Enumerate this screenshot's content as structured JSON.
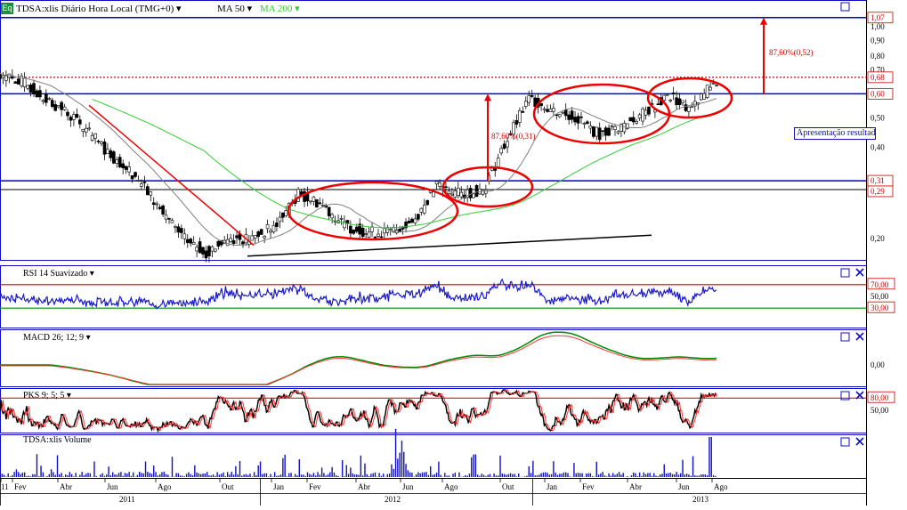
{
  "app": {
    "badge": "Eq"
  },
  "main_header": {
    "symbol_label": "TDSA:xlis Diário Hora Local (TMG+0)",
    "ma50_label": "MA 50",
    "ma200_label": "MA 200"
  },
  "panels": {
    "rsi": {
      "label": "RSI 14 Suavizado"
    },
    "macd": {
      "label": "MACD 26; 12; 9"
    },
    "pks": {
      "label": "PKS 9; 5; 5"
    },
    "volume": {
      "label": "TDSA:xlis Volume"
    }
  },
  "annotations": {
    "arrow_left_label": "87,60%(0,31)",
    "arrow_right_label": "87,60%(0,52)",
    "note_box": "Apresentação resultados"
  },
  "colors": {
    "frame": "#1010c0",
    "ma50": "#808080",
    "ma200": "#33cc33",
    "rsi": "#1a1acc",
    "macd": "#008800",
    "signal": "#ff3333",
    "stoch_k": "#000000",
    "stoch_d": "#ff3333",
    "volume": "#1010c0",
    "ellipse": "#ee0000",
    "arrow": "#ee0000",
    "level_line": "#0000cc"
  },
  "chart_data": [
    {
      "type": "candlestick",
      "title": "TDSA:xlis Diário Hora Local (TMG+0)",
      "y_scale": "log",
      "y_ticks": [
        "1,07",
        "1,00",
        "0,90",
        "0,80",
        "0,70",
        "0,68",
        "0,60",
        "0,50",
        "0,40",
        "0,31",
        "0,29",
        "0,20"
      ],
      "x_ticks": [
        "11",
        "Fev",
        "Abr",
        "Jun",
        "Ago",
        "Out",
        "Jan",
        "Fev",
        "Abr",
        "Jun",
        "Ago",
        "Out",
        "Jan",
        "Fev",
        "Abr",
        "Jun",
        "Ago"
      ],
      "years": [
        "2011",
        "2012",
        "2013"
      ],
      "horizontal_levels": [
        1.07,
        0.6,
        0.31,
        0.29
      ],
      "dotted_level": 0.68,
      "price_path": [
        [
          "2011-01",
          0.7
        ],
        [
          "2011-02",
          0.66
        ],
        [
          "2011-03",
          0.58
        ],
        [
          "2011-04",
          0.52
        ],
        [
          "2011-05",
          0.44
        ],
        [
          "2011-06",
          0.37
        ],
        [
          "2011-07",
          0.32
        ],
        [
          "2011-08",
          0.25
        ],
        [
          "2011-09",
          0.2
        ],
        [
          "2011-10",
          0.18
        ],
        [
          "2011-11",
          0.2
        ],
        [
          "2011-12",
          0.2
        ],
        [
          "2012-01",
          0.22
        ],
        [
          "2012-02",
          0.28
        ],
        [
          "2012-03",
          0.26
        ],
        [
          "2012-04",
          0.22
        ],
        [
          "2012-05",
          0.21
        ],
        [
          "2012-06",
          0.21
        ],
        [
          "2012-07",
          0.23
        ],
        [
          "2012-08",
          0.3
        ],
        [
          "2012-09",
          0.28
        ],
        [
          "2012-10",
          0.29
        ],
        [
          "2012-11",
          0.42
        ],
        [
          "2012-12",
          0.58
        ],
        [
          "2013-01",
          0.53
        ],
        [
          "2013-02",
          0.5
        ],
        [
          "2013-03",
          0.44
        ],
        [
          "2013-04",
          0.47
        ],
        [
          "2013-05",
          0.52
        ],
        [
          "2013-06",
          0.59
        ],
        [
          "2013-07",
          0.53
        ],
        [
          "2013-08",
          0.66
        ]
      ],
      "series": [
        {
          "name": "MA 50"
        },
        {
          "name": "MA 200"
        }
      ]
    },
    {
      "type": "line",
      "title": "RSI 14 Suavizado",
      "y_ticks": [
        "70,00",
        "50,00",
        "30,00"
      ],
      "levels": [
        70,
        30
      ]
    },
    {
      "type": "line",
      "title": "MACD 26; 12; 9",
      "y_ticks": [
        "0,00"
      ]
    },
    {
      "type": "line",
      "title": "PKS 9; 5; 5",
      "y_ticks": [
        "80,00",
        "50,00"
      ],
      "levels": [
        80
      ]
    },
    {
      "type": "bar",
      "title": "TDSA:xlis Volume"
    }
  ]
}
